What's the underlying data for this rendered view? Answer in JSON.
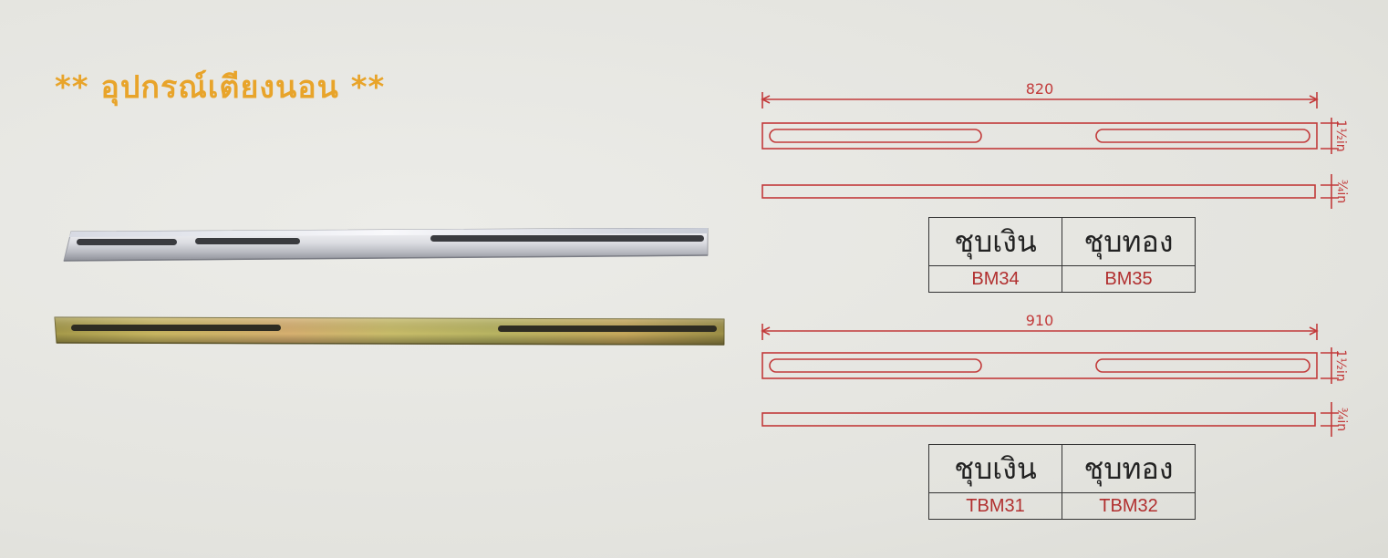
{
  "title": "** อุปกรณ์เตียงนอน **",
  "drawing_top": {
    "length_label": "820",
    "height_label": "1½in",
    "thickness_label": "¾in"
  },
  "drawing_bottom": {
    "length_label": "910",
    "height_label": "1½in",
    "thickness_label": "¾in"
  },
  "table_top": {
    "headers": [
      "ชุบเงิน",
      "ชุบทอง"
    ],
    "codes": [
      "BM34",
      "BM35"
    ]
  },
  "table_bottom": {
    "headers": [
      "ชุบเงิน",
      "ชุบทอง"
    ],
    "codes": [
      "TBM31",
      "TBM32"
    ]
  },
  "colors": {
    "title": "#e8a42a",
    "dimension": "#c23a3a",
    "code_text": "#b12f2f"
  }
}
